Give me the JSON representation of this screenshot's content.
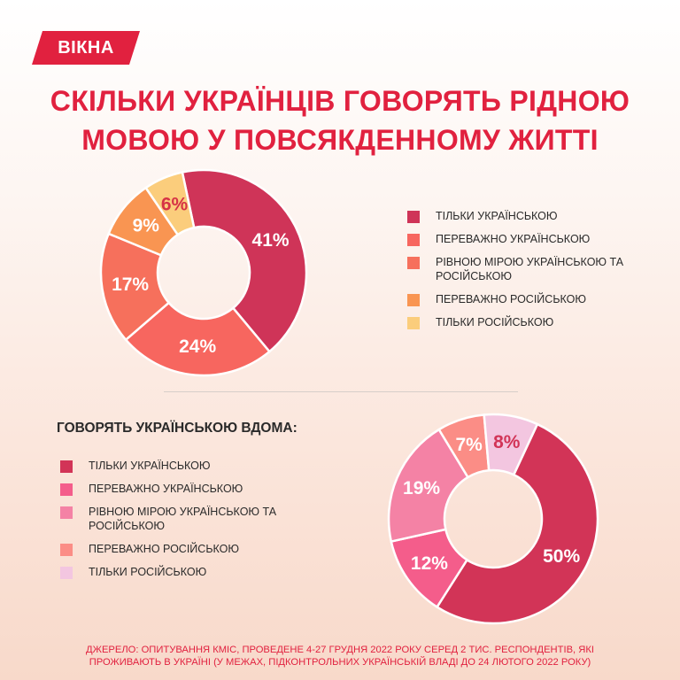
{
  "logo": {
    "text": "ВІКНА",
    "color": "#e1213f"
  },
  "title": {
    "line1": "СКІЛЬКИ УКРАЇНЦІВ ГОВОРЯТЬ РІДНОЮ",
    "line2": "МОВОЮ У ПОВСЯКДЕННОМУ ЖИТТІ"
  },
  "subheading": "ГОВОРЯТЬ УКРАЇНСЬКОЮ ВДОМА:",
  "source": {
    "line1": "ДЖЕРЕЛО: ОПИТУВАННЯ КМІС, ПРОВЕДЕНЕ 4-27 ГРУДНЯ 2022 РОКУ СЕРЕД 2 ТИС. РЕСПОНДЕНТІВ, ЯКІ",
    "line2": "ПРОЖИВАЮТЬ В УКРАЇНІ (У МЕЖАХ, ПІДКОНТРОЛЬНИХ УКРАЇНСЬКІЙ ВЛАДІ ДО 24 ЛЮТОГО 2022 РОКУ)"
  },
  "chart_data": [
    {
      "type": "pie",
      "donut": true,
      "title": "СКІЛЬКИ УКРАЇНЦІВ ГОВОРЯТЬ РІДНОЮ МОВОЮ У ПОВСЯКДЕННОМУ ЖИТТІ",
      "legend_position": "right",
      "categories": [
        "ТІЛЬКИ УКРАЇНСЬКОЮ",
        "ПЕРЕВАЖНО УКРАЇНСЬКОЮ",
        "РІВНОЮ МІРОЮ УКРАЇНСЬКОЮ ТА РОСІЙСЬКОЮ",
        "ПЕРЕВАЖНО РОСІЙСЬКОЮ",
        "ТІЛЬКИ РОСІЙСЬКОЮ"
      ],
      "values": [
        41,
        24,
        17,
        9,
        6
      ],
      "labels": [
        "41%",
        "24%",
        "17%",
        "9%",
        "6%"
      ],
      "colors": [
        "#cf3458",
        "#f7665f",
        "#f6705c",
        "#f99552",
        "#fbcd7c"
      ],
      "label_colors": [
        "#ffffff",
        "#ffffff",
        "#ffffff",
        "#ffffff",
        "#d63245"
      ]
    },
    {
      "type": "pie",
      "donut": true,
      "title": "ГОВОРЯТЬ УКРАЇНСЬКОЮ ВДОМА:",
      "legend_position": "left",
      "categories": [
        "ТІЛЬКИ УКРАЇНСЬКОЮ",
        "ПЕРЕВАЖНО УКРАЇНСЬКОЮ",
        "РІВНОЮ МІРОЮ УКРАЇНСЬКОЮ ТА РОСІЙСЬКОЮ",
        "ПЕРЕВАЖНО РОСІЙСЬКОЮ",
        "ТІЛЬКИ РОСІЙСЬКОЮ"
      ],
      "values": [
        50,
        12,
        19,
        7,
        8
      ],
      "labels": [
        "50%",
        "12%",
        "19%",
        "7%",
        "8%"
      ],
      "colors": [
        "#d23457",
        "#f45d8b",
        "#f482a5",
        "#fb8d86",
        "#f3c6e0"
      ],
      "label_colors": [
        "#ffffff",
        "#ffffff",
        "#ffffff",
        "#ffffff",
        "#d23457"
      ]
    }
  ]
}
